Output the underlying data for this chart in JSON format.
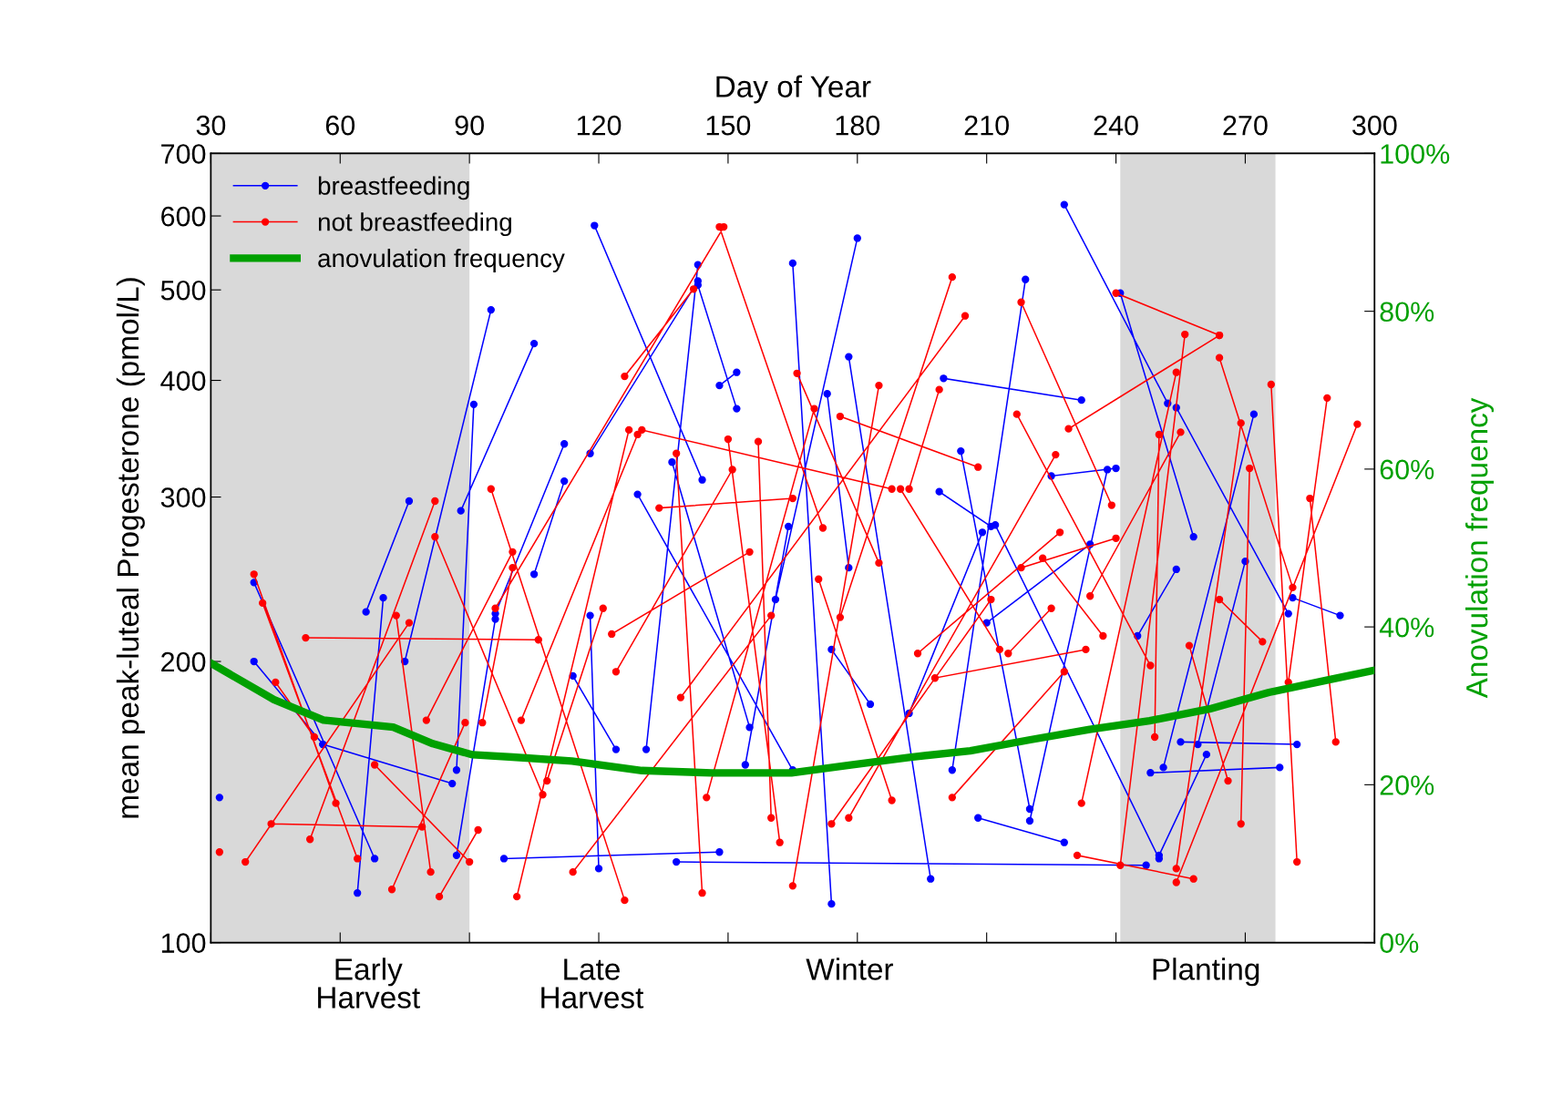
{
  "chart_data": {
    "type": "line",
    "xlabel": "Day of Year",
    "ylabel": "mean peak-luteal Progesterone (pmol/L)",
    "y2label": "Anovulation frequency",
    "xlim": [
      30,
      300
    ],
    "xticks": [
      30,
      60,
      90,
      120,
      150,
      180,
      210,
      240,
      270,
      300
    ],
    "ylim": [
      100,
      700
    ],
    "yticks": [
      100,
      200,
      300,
      400,
      500,
      600,
      700
    ],
    "y2lim": [
      0,
      100
    ],
    "y2ticks": [
      {
        "value": 0,
        "label": "0%"
      },
      {
        "value": 20,
        "label": "20%"
      },
      {
        "value": 40,
        "label": "40%"
      },
      {
        "value": 60,
        "label": "60%"
      },
      {
        "value": 80,
        "label": "80%"
      },
      {
        "value": 100,
        "label": "100%"
      }
    ],
    "log": "y",
    "grid": false,
    "legend": "top left",
    "marker": "circle",
    "line_style": "solid",
    "bands": [
      {
        "axis": "x",
        "from": 30,
        "to": 90,
        "color": "#d9d9d9"
      },
      {
        "axis": "x",
        "from": 241,
        "to": 277,
        "color": "#d9d9d9"
      }
    ],
    "annotations": [
      "Early Harvest",
      "Late Harvest",
      "Winter",
      "Planting"
    ],
    "series": [
      {
        "name": "breastfeeding",
        "color": "#0000ff",
        "x": [
          32,
          null,
          40,
          56,
          null,
          56,
          86,
          null,
          40,
          68,
          null,
          66,
          76,
          null,
          70,
          64,
          null,
          75,
          95,
          null,
          88,
          105,
          null,
          91,
          87,
          null,
          87,
          96,
          null,
          96,
          112,
          null,
          98,
          148,
          null,
          138,
          247,
          null,
          119,
          144,
          null,
          118,
          143,
          null,
          112,
          105,
          null,
          118,
          120,
          null,
          114,
          124,
          null,
          131,
          143,
          null,
          129,
          165,
          null,
          137,
          155,
          null,
          143,
          152,
          null,
          148,
          152,
          null,
          165,
          174,
          null,
          164,
          154,
          null,
          173,
          178,
          null,
          178,
          197,
          null,
          180,
          161,
          null,
          200,
          232,
          null,
          199,
          211,
          null,
          212,
          250,
          null,
          228,
          252,
          null,
          241,
          258,
          null,
          219,
          202,
          null,
          225,
          240,
          null,
          234,
          210,
          null,
          238,
          220,
          null,
          254,
          280,
          null,
          270,
          259,
          null,
          272,
          251,
          null,
          281,
          292,
          null,
          278,
          248,
          null,
          282,
          255,
          null,
          261,
          250,
          null,
          254,
          245,
          null,
          209,
          192,
          null,
          204,
          220,
          null,
          174,
          183,
          null,
          208,
          228
        ],
        "values": [
          143,
          null,
          200,
          163,
          null,
          163,
          148,
          null,
          243,
          123,
          null,
          226,
          297,
          null,
          234,
          113,
          null,
          200,
          476,
          null,
          290,
          438,
          null,
          377,
          153,
          null,
          124,
          222,
          null,
          225,
          342,
          null,
          123,
          125,
          null,
          122,
          121,
          null,
          586,
          313,
          null,
          334,
          511,
          null,
          312,
          248,
          null,
          224,
          120,
          null,
          193,
          161,
          null,
          161,
          532,
          null,
          302,
          153,
          null,
          327,
          170,
          null,
          506,
          373,
          null,
          395,
          408,
          null,
          534,
          110,
          null,
          279,
          155,
          null,
          387,
          252,
          null,
          424,
          117,
          null,
          568,
          233,
          null,
          402,
          381,
          null,
          304,
          279,
          null,
          280,
          123,
          null,
          617,
          378,
          null,
          496,
          272,
          null,
          513,
          153,
          null,
          316,
          322,
          null,
          267,
          220,
          null,
          321,
          135,
          null,
          374,
          225,
          null,
          256,
          163,
          null,
          368,
          154,
          null,
          234,
          224,
          null,
          154,
          152,
          null,
          163,
          164,
          null,
          159,
          124,
          null,
          251,
          213,
          null,
          275,
          176,
          null,
          336,
          139,
          null,
          206,
          180,
          null,
          136,
          128
        ]
      },
      {
        "name": "not breastfeeding",
        "color": "#ff0000",
        "x": [
          32,
          null,
          40,
          59,
          null,
          38,
          76,
          null,
          42,
          64,
          null,
          45,
          54,
          null,
          44,
          79,
          null,
          52,
          106,
          null,
          53,
          82,
          null,
          68,
          90,
          null,
          73,
          81,
          null,
          72,
          89,
          null,
          80,
          100,
          null,
          82,
          107,
          null,
          83,
          92,
          null,
          95,
          126,
          null,
          101,
          127,
          null,
          96,
          149,
          null,
          93,
          100,
          null,
          108,
          121,
          null,
          102,
          129,
          null,
          123,
          155,
          null,
          126,
          142,
          null,
          130,
          188,
          null,
          134,
          165,
          null,
          144,
          138,
          null,
          148,
          172,
          null,
          151,
          124,
          null,
          157,
          160,
          null,
          166,
          185,
          null,
          171,
          188,
          null,
          176,
          208,
          null,
          185,
          165,
          null,
          202,
          176,
          null,
          199,
          192,
          null,
          217,
          248,
          null,
          218,
          240,
          null,
          229,
          264,
          null,
          234,
          255,
          null,
          240,
          264,
          null,
          256,
          241,
          null,
          269,
          254,
          null,
          254,
          232,
          null,
          264,
          281,
          null,
          276,
          282,
          null,
          289,
          280,
          null,
          296,
          254,
          null,
          271,
          269,
          null,
          285,
          291,
          null,
          231,
          258,
          null,
          249,
          250,
          null,
          215,
          225,
          null,
          228,
          202,
          null,
          198,
          233,
          null,
          211,
          174,
          null,
          218,
          239,
          null,
          194,
          227,
          null,
          223,
          237,
          null,
          257,
          266,
          null,
          264,
          274,
          null,
          178,
          226,
          null,
          162,
          150,
          null,
          190,
          213,
          null,
          139,
          205,
          null,
          114,
          160,
          null,
          145,
          170
        ],
        "values": [
          125,
          null,
          248,
          141,
          null,
          122,
          220,
          null,
          231,
          123,
          null,
          190,
          166,
          null,
          134,
          133,
          null,
          212,
          211,
          null,
          129,
          297,
          null,
          155,
          122,
          null,
          224,
          119,
          null,
          114,
          172,
          null,
          173,
          262,
          null,
          272,
          144,
          null,
          112,
          132,
          null,
          306,
          111,
          null,
          112,
          354,
          null,
          228,
          584,
          null,
          172,
          252,
          null,
          149,
          228,
          null,
          173,
          350,
          null,
          214,
          262,
          null,
          404,
          501,
          null,
          354,
          306,
          null,
          292,
          299,
          null,
          113,
          334,
          null,
          584,
          278,
          null,
          321,
          195,
          null,
          344,
          136,
          null,
          407,
          255,
          null,
          245,
          142,
          null,
          366,
          323,
          null,
          395,
          115,
          null,
          516,
          223,
          null,
          391,
          306,
          null,
          368,
          198,
          null,
          252,
          271,
          null,
          355,
          447,
          null,
          235,
          352,
          null,
          496,
          447,
          null,
          448,
          121,
          null,
          360,
          120,
          null,
          408,
          141,
          null,
          423,
          240,
          null,
          396,
          122,
          null,
          383,
          190,
          null,
          359,
          116,
          null,
          322,
          134,
          null,
          299,
          164,
          null,
          124,
          117,
          null,
          166,
          350,
          null,
          204,
          228,
          null,
          195,
          143,
          null,
          192,
          206,
          null,
          233,
          134,
          null,
          485,
          294,
          null,
          204,
          275,
          null,
          258,
          213,
          null,
          208,
          149,
          null,
          233,
          210,
          null,
          136,
          333,
          null,
          128,
          346,
          null,
          306,
          206,
          null,
          183,
          469,
          null,
          119,
          224,
          null,
          143,
          373
        ]
      },
      {
        "name": "anovulation frequency",
        "color": "#00a000",
        "axis": "y2",
        "marker": "none",
        "x": [
          30.0,
          44.6,
          56.1,
          72.3,
          81.5,
          90.7,
          100.0,
          113.8,
          130.0,
          146.2,
          164.7,
          178.5,
          192.4,
          206.2,
          220.1,
          233.9,
          247.8,
          261.7,
          275.5,
          289.4,
          300.0
        ],
        "values": [
          35.4,
          30.8,
          28.2,
          27.3,
          25.2,
          23.8,
          23.5,
          23.0,
          21.8,
          21.5,
          21.5,
          22.5,
          23.5,
          24.3,
          25.7,
          27.0,
          28.1,
          29.6,
          31.7,
          33.3,
          34.5
        ]
      }
    ]
  }
}
